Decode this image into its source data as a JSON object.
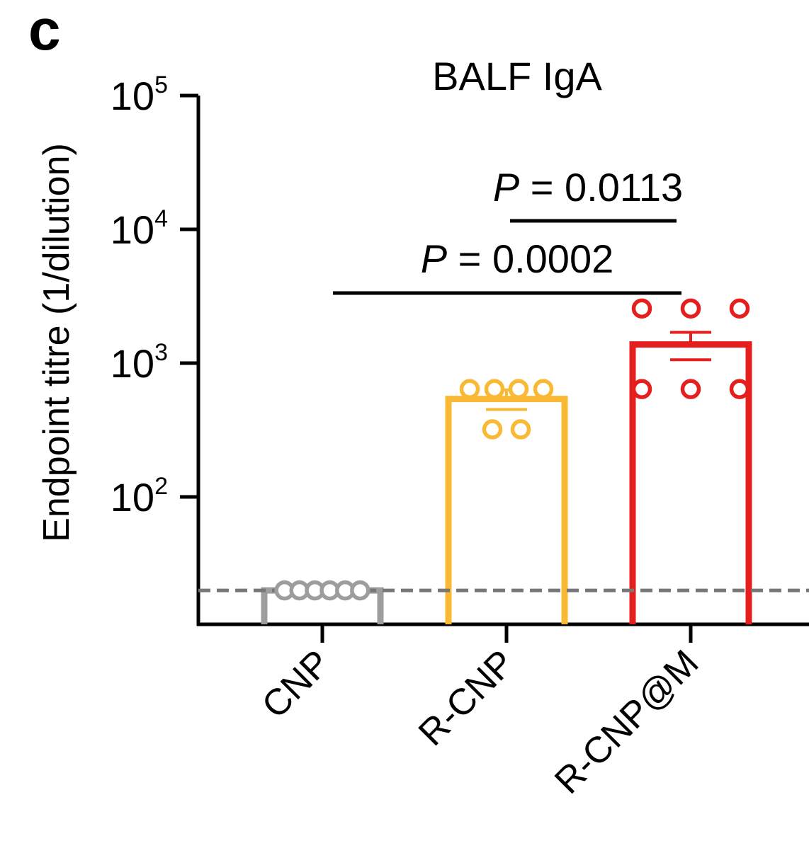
{
  "panel_label": "c",
  "chart_data": {
    "type": "bar",
    "title": "BALF IgA",
    "ylabel": "Endpoint titre (1/dilution)",
    "xlabel": "",
    "yscale": "log",
    "ylim": [
      10,
      100000
    ],
    "ytick_values": [
      100,
      1000,
      10000,
      100000
    ],
    "yticks": [
      {
        "base": "10",
        "exp": "2"
      },
      {
        "base": "10",
        "exp": "3"
      },
      {
        "base": "10",
        "exp": "4"
      },
      {
        "base": "10",
        "exp": "5"
      }
    ],
    "detection_limit": 20,
    "categories": [
      "CNP",
      "R-CNP",
      "R-CNP@M"
    ],
    "colors": [
      "#9d9d9f",
      "#f9b934",
      "#e41f1d"
    ],
    "values": [
      20,
      540,
      1380
    ],
    "error": [
      0,
      90,
      320
    ],
    "points": [
      [
        20,
        20,
        20,
        20,
        20,
        20
      ],
      [
        640,
        640,
        640,
        640,
        320,
        320
      ],
      [
        2560,
        2560,
        2560,
        640,
        640,
        640
      ]
    ],
    "significance": [
      {
        "from": 0,
        "to": 2,
        "label_italic": "P",
        "label_rest": " = 0.0002"
      },
      {
        "from": 1,
        "to": 2,
        "label_italic": "P",
        "label_rest": " = 0.0113"
      }
    ]
  }
}
